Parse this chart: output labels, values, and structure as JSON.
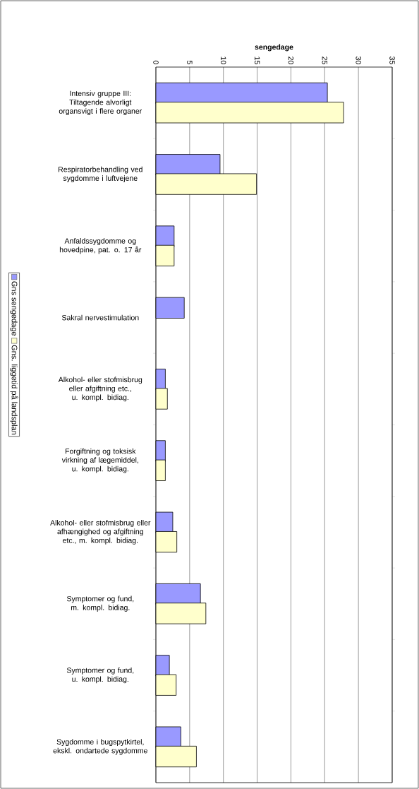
{
  "chart_data": {
    "type": "bar",
    "orientation": "horizontal",
    "xlabel": "sengedage",
    "categories": [
      "Intensiv gruppe III: Tiltagende alvorligt organsvigt i flere organer",
      "Respiratorbehandling ved sygdomme i luftvejene",
      "Anfaldssygdomme og hovedpine, pat. o. 17 år",
      "Sakral nervestimulation",
      "Alkohol- eller stofmisbrug eller afgiftning etc., u. kompl. bidiag.",
      "Forgiftning og toksisk virkning af lægemiddel, u. kompl. bidiag.",
      "Alkohol- eller stofmisbrug eller afhængighed og afgiftning etc., m. kompl. bidiag.",
      "Symptomer og fund, m. kompl. bidiag.",
      "Symptomer og fund, u. kompl. bidiag.",
      "Sygdomme i bugspytkirtel, ekskl. ondartede sygdomme"
    ],
    "series": [
      {
        "name": "Gns sengedage",
        "color": "#9999ff",
        "values": [
          25.4,
          9.5,
          2.7,
          4.2,
          1.4,
          1.4,
          2.5,
          6.6,
          2.0,
          3.7
        ]
      },
      {
        "name": "Gns. liggetid på landsplan",
        "color": "#ffffcc",
        "values": [
          27.8,
          14.9,
          2.7,
          null,
          1.7,
          1.4,
          3.1,
          7.4,
          3.0,
          6.0
        ]
      }
    ],
    "xlim": [
      0,
      35
    ],
    "xticks": [
      0,
      5,
      10,
      15,
      20,
      25,
      30,
      35
    ],
    "grid": "x",
    "legend": "left"
  }
}
